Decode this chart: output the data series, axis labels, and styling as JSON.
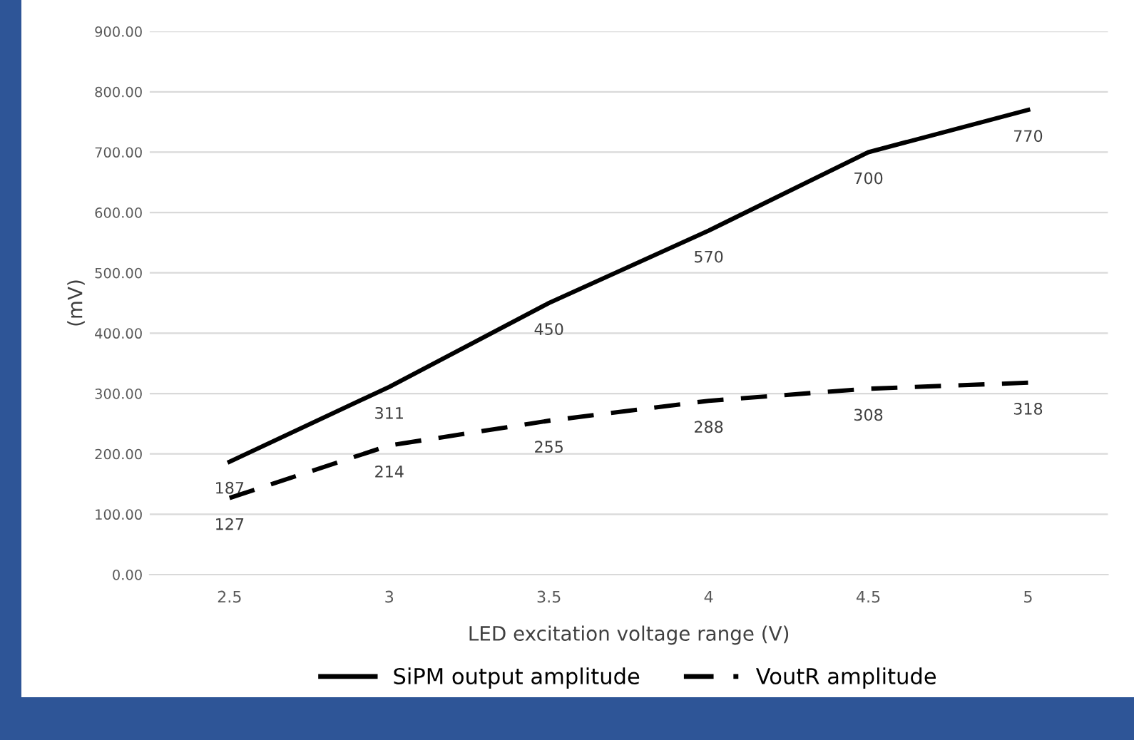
{
  "chart_data": {
    "type": "line",
    "xlabel": "LED excitation voltage range (V)",
    "ylabel": "(mV)",
    "categories": [
      "2.5",
      "3",
      "3.5",
      "4",
      "4.5",
      "5"
    ],
    "series": [
      {
        "name": "SiPM output amplitude",
        "color": "#000000",
        "line_style": "solid",
        "values": [
          187,
          311,
          450,
          570,
          700,
          770
        ]
      },
      {
        "name": "VoutR amplitude",
        "color": "#000000",
        "line_style": "dashed",
        "values": [
          127,
          214,
          255,
          288,
          308,
          318
        ]
      }
    ],
    "ylim": [
      0,
      900
    ],
    "yticks": [
      {
        "value": 0,
        "label": "0.00"
      },
      {
        "value": 100,
        "label": "100.00"
      },
      {
        "value": 200,
        "label": "200.00"
      },
      {
        "value": 300,
        "label": "300.00"
      },
      {
        "value": 400,
        "label": "400.00"
      },
      {
        "value": 500,
        "label": "500.00"
      },
      {
        "value": 600,
        "label": "600.00"
      },
      {
        "value": 700,
        "label": "700.00"
      },
      {
        "value": 800,
        "label": "800.00"
      },
      {
        "value": 900,
        "label": "900.00"
      }
    ],
    "grid": "y",
    "legend": "bottom",
    "data_labels": true,
    "marker": "none"
  }
}
